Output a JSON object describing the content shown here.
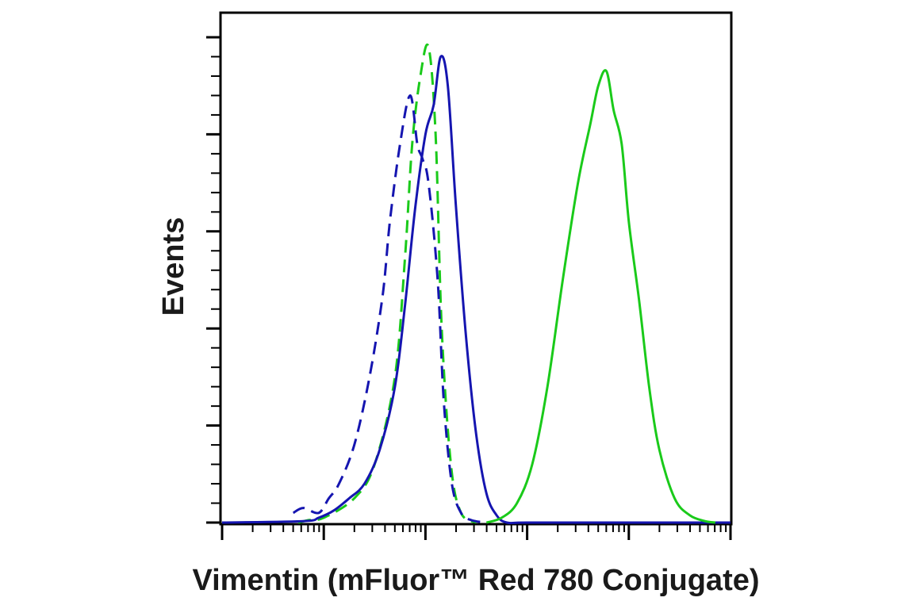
{
  "chart_data": {
    "type": "line",
    "title": "",
    "xlabel": "Vimentin (mFluor™ Red 780 Conjugate)",
    "ylabel": "Events",
    "x_scale": "log",
    "x_decades": 5,
    "xlim": [
      0,
      5
    ],
    "ylim": [
      0,
      100
    ],
    "grid": false,
    "legend": "none",
    "tick_labels_shown": false,
    "series": [
      {
        "color": "#1aca1a",
        "style": "dashed",
        "x": [
          0.75,
          0.85,
          1.0,
          1.3,
          1.5,
          1.7,
          1.8,
          1.87,
          1.95,
          2.03,
          2.1,
          2.16,
          2.25,
          2.35,
          2.5
        ],
        "y": [
          0,
          0.5,
          1,
          5,
          12,
          30,
          55,
          78,
          92,
          98,
          80,
          40,
          12,
          2,
          0
        ]
      },
      {
        "color": "#1515b0",
        "style": "dashed",
        "x": [
          0.7,
          0.8,
          0.95,
          1.05,
          1.15,
          1.3,
          1.45,
          1.58,
          1.65,
          1.75,
          1.85,
          1.92,
          1.97,
          2.03,
          2.12,
          2.18,
          2.26,
          2.35,
          2.45,
          2.6
        ],
        "y": [
          2,
          3,
          2,
          5,
          8,
          16,
          30,
          47,
          62,
          78,
          88,
          78,
          75,
          70,
          50,
          25,
          8,
          2,
          0.5,
          0
        ]
      },
      {
        "color": "#1515b0",
        "style": "solid",
        "x": [
          0,
          0.8,
          0.95,
          1.1,
          1.25,
          1.4,
          1.55,
          1.7,
          1.8,
          1.9,
          2.0,
          2.08,
          2.15,
          2.22,
          2.3,
          2.4,
          2.5,
          2.6,
          2.7,
          2.8,
          3.0,
          4.0,
          5.0
        ],
        "y": [
          0,
          0.3,
          1,
          2.5,
          5,
          8,
          15,
          28,
          45,
          65,
          80,
          86,
          96,
          90,
          65,
          38,
          18,
          6,
          1.5,
          0,
          0,
          0,
          0
        ]
      },
      {
        "color": "#1aca1a",
        "style": "solid",
        "x": [
          2.6,
          2.75,
          2.9,
          3.05,
          3.2,
          3.35,
          3.5,
          3.62,
          3.7,
          3.78,
          3.85,
          3.93,
          4.0,
          4.1,
          4.2,
          4.3,
          4.45,
          4.6,
          4.75,
          4.85
        ],
        "y": [
          0,
          1,
          4,
          12,
          28,
          50,
          70,
          82,
          90,
          93,
          85,
          78,
          62,
          46,
          28,
          15,
          5,
          1.5,
          0.3,
          0
        ]
      }
    ]
  }
}
